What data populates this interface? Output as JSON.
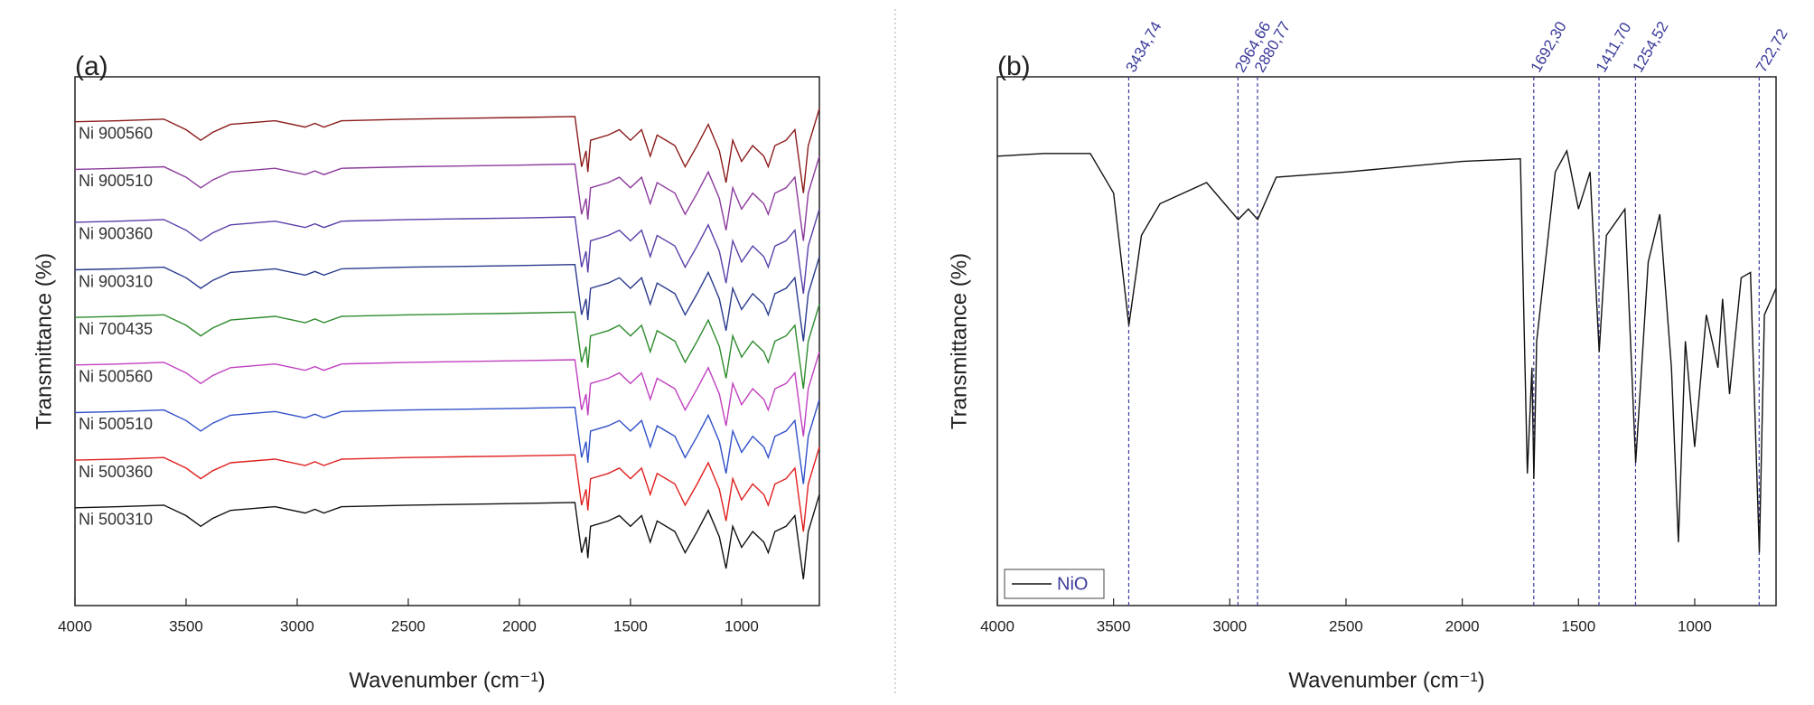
{
  "chart_data": [
    {
      "type": "line",
      "title": "(a)",
      "xlabel": "Wavenumber (cm⁻¹)",
      "ylabel": "Transmittance (%)",
      "xlim": [
        4000,
        650
      ],
      "xticks": [
        4000,
        3500,
        3000,
        2500,
        2000,
        1500,
        1000
      ],
      "ylim": [
        0,
        100
      ],
      "legend": "inline",
      "x": [
        4000,
        3800,
        3600,
        3500,
        3434,
        3380,
        3300,
        3100,
        2964,
        2920,
        2880,
        2800,
        2500,
        2000,
        1750,
        1720,
        1700,
        1692,
        1680,
        1600,
        1550,
        1500,
        1450,
        1411,
        1380,
        1300,
        1254,
        1200,
        1150,
        1100,
        1070,
        1040,
        1000,
        950,
        900,
        880,
        850,
        800,
        760,
        722,
        700,
        650
      ],
      "series": [
        {
          "name": "Ni 900560",
          "color": "#8b1a1a",
          "values": [
            91.5,
            91.7,
            92,
            90,
            88,
            89.5,
            91,
            91.7,
            90.5,
            91.2,
            90.5,
            91.7,
            92,
            92.3,
            92.5,
            83,
            86,
            82,
            88,
            89,
            90,
            88,
            90,
            85,
            89,
            87,
            83,
            87,
            91,
            86,
            80,
            88,
            84,
            87,
            85,
            83,
            87,
            88,
            90,
            78,
            87,
            94
          ]
        },
        {
          "name": "Ni 900510",
          "color": "#8b3a9b",
          "values": [
            82.5,
            82.7,
            83,
            81,
            79,
            80.5,
            82,
            82.7,
            81.5,
            82.2,
            81.5,
            82.7,
            83,
            83.3,
            83.5,
            74,
            77,
            73,
            79,
            80,
            81,
            79,
            81,
            76,
            80,
            78,
            74,
            78,
            82,
            77,
            71,
            79,
            75,
            78,
            76,
            74,
            78,
            79,
            81,
            69,
            78,
            85
          ]
        },
        {
          "name": "Ni 900360",
          "color": "#5a3fa8",
          "values": [
            72.5,
            72.7,
            73,
            71,
            69,
            70.5,
            72,
            72.7,
            71.5,
            72.2,
            71.5,
            72.7,
            73,
            73.3,
            73.5,
            64,
            67,
            63,
            69,
            70,
            71,
            69,
            71,
            66,
            70,
            68,
            64,
            68,
            72,
            67,
            61,
            69,
            65,
            68,
            66,
            64,
            68,
            69,
            71,
            59,
            68,
            75
          ]
        },
        {
          "name": "Ni 900310",
          "color": "#2a3a8c",
          "values": [
            63.5,
            63.7,
            64,
            62,
            60,
            61.5,
            63,
            63.7,
            62.5,
            63.2,
            62.5,
            63.7,
            64,
            64.3,
            64.5,
            55,
            58,
            54,
            60,
            61,
            62,
            60,
            62,
            57,
            61,
            59,
            55,
            59,
            63,
            58,
            52,
            60,
            56,
            59,
            57,
            55,
            59,
            60,
            62,
            50,
            59,
            66
          ]
        },
        {
          "name": "Ni 700435",
          "color": "#2e8b2e",
          "values": [
            54.5,
            54.7,
            55,
            53,
            51,
            52.5,
            54,
            54.7,
            53.5,
            54.2,
            53.5,
            54.7,
            55,
            55.3,
            55.5,
            46,
            49,
            45,
            51,
            52,
            53,
            51,
            53,
            48,
            52,
            50,
            46,
            50,
            54,
            49,
            43,
            51,
            47,
            50,
            48,
            46,
            50,
            51,
            53,
            41,
            50,
            57
          ]
        },
        {
          "name": "Ni 500560",
          "color": "#c040c0",
          "values": [
            45.5,
            45.7,
            46,
            44,
            42,
            43.5,
            45,
            45.7,
            44.5,
            45.2,
            44.5,
            45.7,
            46,
            46.3,
            46.5,
            37,
            40,
            36,
            42,
            43,
            44,
            42,
            44,
            39,
            43,
            41,
            37,
            41,
            45,
            40,
            34,
            42,
            38,
            41,
            39,
            37,
            41,
            42,
            44,
            32,
            41,
            48
          ]
        },
        {
          "name": "Ni 500510",
          "color": "#3050c8",
          "values": [
            36.5,
            36.7,
            37,
            35,
            33,
            34.5,
            36,
            36.7,
            35.5,
            36.2,
            35.5,
            36.7,
            37,
            37.3,
            37.5,
            28,
            31,
            27,
            33,
            34,
            35,
            33,
            35,
            30,
            34,
            32,
            28,
            32,
            36,
            31,
            25,
            33,
            29,
            32,
            30,
            28,
            32,
            33,
            35,
            23,
            32,
            39
          ]
        },
        {
          "name": "Ni 500360",
          "color": "#e02020",
          "values": [
            27.5,
            27.7,
            28,
            26,
            24,
            25.5,
            27,
            27.7,
            26.5,
            27.2,
            26.5,
            27.7,
            28,
            28.3,
            28.5,
            19,
            22,
            18,
            24,
            25,
            26,
            24,
            26,
            21,
            25,
            23,
            19,
            23,
            27,
            22,
            16,
            24,
            20,
            23,
            21,
            19,
            23,
            24,
            26,
            14,
            23,
            30
          ]
        },
        {
          "name": "Ni 500310",
          "color": "#111111",
          "values": [
            18.5,
            18.7,
            19,
            17,
            15,
            16.5,
            18,
            18.7,
            17.5,
            18.2,
            17.5,
            18.7,
            19,
            19.3,
            19.5,
            10,
            13,
            9,
            15,
            16,
            17,
            15,
            17,
            12,
            16,
            14,
            10,
            14,
            18,
            13,
            7,
            15,
            11,
            14,
            12,
            10,
            14,
            15,
            17,
            5,
            14,
            21
          ]
        }
      ]
    },
    {
      "type": "line",
      "title": "(b)",
      "xlabel": "Wavenumber (cm⁻¹)",
      "ylabel": "Transmittance (%)",
      "xlim": [
        4000,
        650
      ],
      "xticks": [
        4000,
        3500,
        3000,
        2500,
        2000,
        1500,
        1000
      ],
      "ylim": [
        0,
        100
      ],
      "legend": "lower left",
      "x": [
        4000,
        3800,
        3600,
        3500,
        3434,
        3380,
        3300,
        3100,
        2964,
        2920,
        2880,
        2800,
        2500,
        2000,
        1750,
        1720,
        1700,
        1692,
        1680,
        1600,
        1550,
        1500,
        1450,
        1411,
        1380,
        1300,
        1254,
        1200,
        1150,
        1100,
        1070,
        1040,
        1000,
        950,
        900,
        880,
        850,
        800,
        760,
        722,
        700,
        650
      ],
      "series": [
        {
          "name": "NiO",
          "color": "#111111",
          "values": [
            85,
            85.5,
            85.5,
            78,
            53,
            70,
            76,
            80,
            73,
            75,
            73,
            81,
            82,
            84,
            84.5,
            25,
            45,
            24,
            50,
            82,
            86,
            75,
            82,
            48,
            70,
            75,
            27,
            65,
            74,
            45,
            12,
            50,
            30,
            55,
            45,
            58,
            40,
            62,
            63,
            10,
            55,
            60
          ]
        }
      ],
      "marker_color": "#3b3b9b",
      "markers": [
        {
          "value": 3434.74,
          "label": "3434,74"
        },
        {
          "value": 2964.66,
          "label": "2964,66"
        },
        {
          "value": 2880.77,
          "label": "2880,77"
        },
        {
          "value": 1692.3,
          "label": "1692,30"
        },
        {
          "value": 1411.7,
          "label": "1411,70"
        },
        {
          "value": 1254.52,
          "label": "1254,52"
        },
        {
          "value": 722.72,
          "label": "722,72"
        }
      ]
    }
  ]
}
